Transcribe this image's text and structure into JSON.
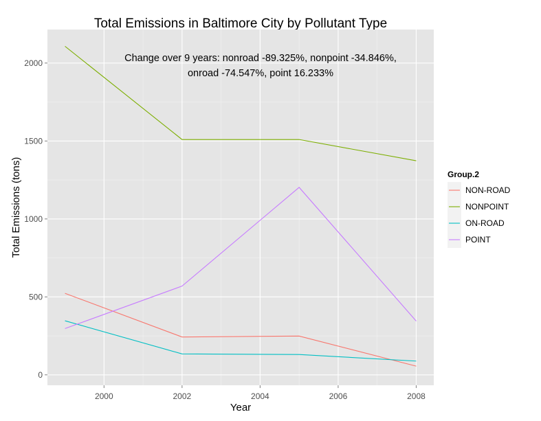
{
  "chart_data": {
    "type": "line",
    "title": "Total Emissions in Baltimore City by Pollutant Type",
    "annotation": [
      "Change over 9 years: nonroad -89.325%, nonpoint -34.846%,",
      "onroad -74.547%, point 16.233%"
    ],
    "xlabel": "Year",
    "ylabel": "Total Emissions (tons)",
    "x": [
      1999,
      2002,
      2005,
      2008
    ],
    "xlim": [
      1998.55,
      2008.45
    ],
    "ylim": [
      -67,
      2215
    ],
    "xticks": [
      2000,
      2002,
      2004,
      2006,
      2008
    ],
    "yticks": [
      0,
      500,
      1000,
      1500,
      2000
    ],
    "grid": true,
    "background": "#e5e5e5",
    "legend": {
      "title": "Group.2",
      "placement": "right"
    },
    "series": [
      {
        "name": "NON-ROAD",
        "color": "#f8766d",
        "values": [
          522.94,
          242.85,
          248.93,
          55.82
        ]
      },
      {
        "name": "NONPOINT",
        "color": "#7cae00",
        "values": [
          2107.63,
          1509.5,
          1509.5,
          1373.21
        ]
      },
      {
        "name": "ON-ROAD",
        "color": "#00bfc4",
        "values": [
          346.82,
          134.31,
          130.43,
          88.28
        ]
      },
      {
        "name": "POINT",
        "color": "#c77cff",
        "values": [
          296.8,
          569.26,
          1202.49,
          344.98
        ]
      }
    ]
  }
}
